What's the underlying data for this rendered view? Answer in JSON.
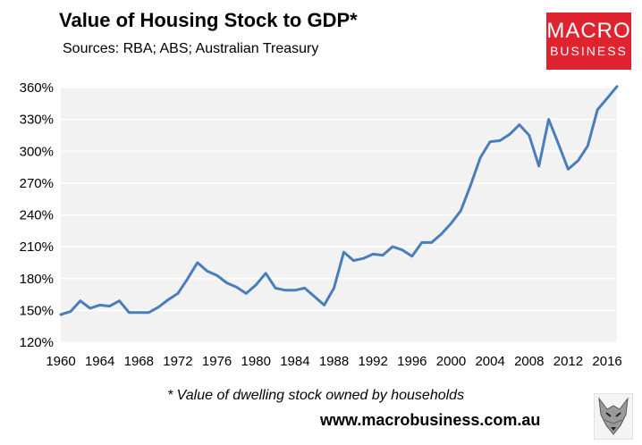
{
  "header": {
    "title": "Value of Housing Stock to GDP*",
    "subtitle": "Sources: RBA; ABS; Australian Treasury"
  },
  "logo": {
    "line1": "MACRO",
    "line2": "BUSINESS",
    "color": "#e0242f"
  },
  "footer": {
    "footnote": "* Value of dwelling stock owned by households",
    "website": "www.macrobusiness.com.au"
  },
  "colors": {
    "line": "#4a7ebb",
    "plot_bg": "#f2f2f2",
    "grid": "#ffffff"
  },
  "chart_data": {
    "type": "line",
    "title": "Value of Housing Stock to GDP*",
    "xlabel": "",
    "ylabel": "",
    "xlim": [
      1960,
      2017
    ],
    "ylim": [
      120,
      360
    ],
    "grid": true,
    "yticks": [
      120,
      150,
      180,
      210,
      240,
      270,
      300,
      330,
      360
    ],
    "ytick_labels": [
      "120%",
      "150%",
      "180%",
      "210%",
      "240%",
      "270%",
      "300%",
      "330%",
      "360%"
    ],
    "xticks": [
      1960,
      1964,
      1968,
      1972,
      1976,
      1980,
      1984,
      1988,
      1992,
      1996,
      2000,
      2004,
      2008,
      2012,
      2016
    ],
    "xtick_labels": [
      "1960",
      "1964",
      "1968",
      "1972",
      "1976",
      "1980",
      "1984",
      "1988",
      "1992",
      "1996",
      "2000",
      "2004",
      "2008",
      "2012",
      "2016"
    ],
    "series": [
      {
        "name": "Value of housing stock to GDP",
        "x": [
          1960,
          1961,
          1962,
          1963,
          1964,
          1965,
          1966,
          1967,
          1968,
          1969,
          1970,
          1971,
          1972,
          1973,
          1974,
          1975,
          1976,
          1977,
          1978,
          1979,
          1980,
          1981,
          1982,
          1983,
          1984,
          1985,
          1986,
          1987,
          1988,
          1989,
          1990,
          1991,
          1992,
          1993,
          1994,
          1995,
          1996,
          1997,
          1998,
          1999,
          2000,
          2001,
          2002,
          2003,
          2004,
          2005,
          2006,
          2007,
          2008,
          2009,
          2010,
          2011,
          2012,
          2013,
          2014,
          2015,
          2016,
          2017
        ],
        "values": [
          146,
          149,
          159,
          152,
          155,
          154,
          159,
          148,
          148,
          148,
          153,
          160,
          166,
          180,
          195,
          187,
          183,
          176,
          172,
          166,
          174,
          185,
          171,
          169,
          169,
          171,
          163,
          155,
          171,
          205,
          197,
          199,
          203,
          202,
          210,
          207,
          201,
          214,
          214,
          222,
          232,
          244,
          268,
          294,
          309,
          310,
          316,
          325,
          315,
          286,
          330,
          307,
          283,
          291,
          305,
          339,
          350,
          361
        ]
      }
    ]
  }
}
